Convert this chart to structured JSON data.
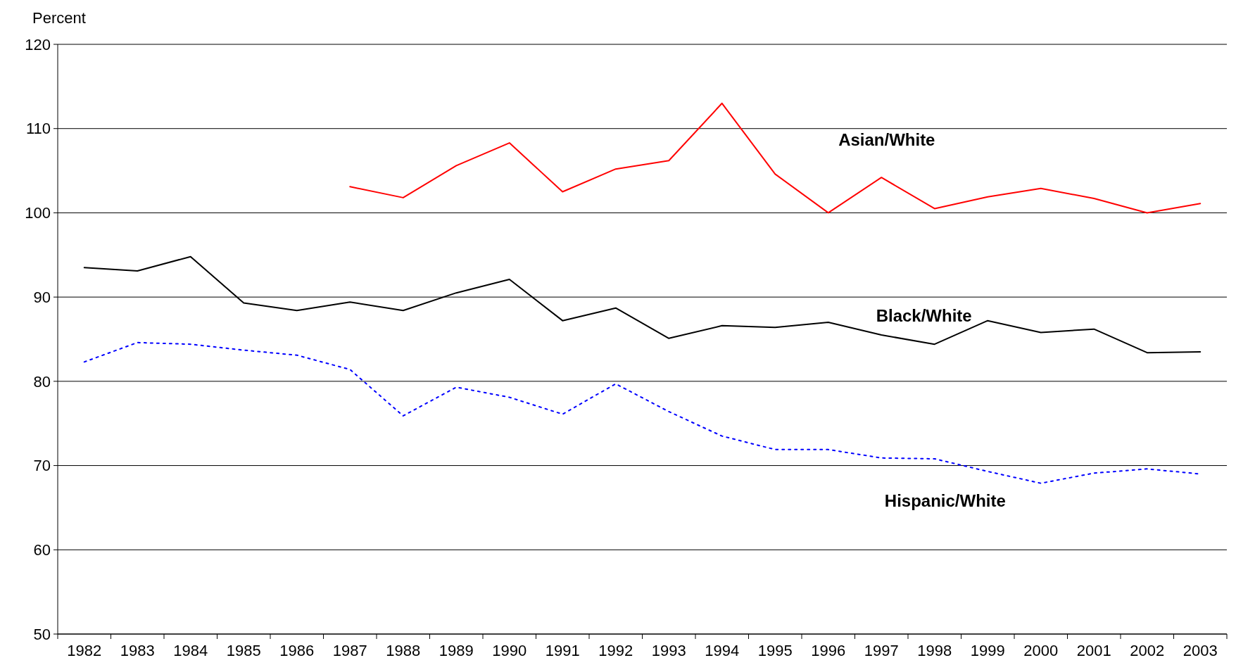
{
  "chart_data": {
    "type": "line",
    "ylabel": "Percent",
    "categories": [
      "1982",
      "1983",
      "1984",
      "1985",
      "1986",
      "1987",
      "1988",
      "1989",
      "1990",
      "1991",
      "1992",
      "1993",
      "1994",
      "1995",
      "1996",
      "1997",
      "1998",
      "1999",
      "2000",
      "2001",
      "2002",
      "2003"
    ],
    "series": [
      {
        "name": "Asian/White",
        "color": "#ff0000",
        "line_style": "solid",
        "values": [
          null,
          null,
          null,
          null,
          null,
          103.1,
          101.8,
          105.6,
          108.3,
          102.5,
          105.2,
          106.2,
          113.0,
          104.6,
          100.0,
          104.2,
          100.5,
          101.9,
          102.9,
          101.7,
          100.0,
          101.1
        ]
      },
      {
        "name": "Black/White",
        "color": "#000000",
        "line_style": "solid",
        "values": [
          93.5,
          93.1,
          94.8,
          89.3,
          88.4,
          89.4,
          88.4,
          90.5,
          92.1,
          87.2,
          88.7,
          85.1,
          86.6,
          86.4,
          87.0,
          85.5,
          84.4,
          87.2,
          85.8,
          86.2,
          83.4,
          83.5
        ]
      },
      {
        "name": "Hispanic/White",
        "color": "#0000ff",
        "line_style": "dotted",
        "values": [
          82.3,
          84.6,
          84.4,
          83.7,
          83.1,
          81.4,
          75.9,
          79.3,
          78.1,
          76.1,
          79.7,
          76.4,
          73.5,
          71.9,
          71.9,
          70.9,
          70.8,
          69.3,
          67.9,
          69.1,
          69.6,
          69.0
        ]
      }
    ],
    "ylim": [
      50,
      120
    ],
    "yticks": [
      50,
      60,
      70,
      80,
      90,
      100,
      110,
      120
    ],
    "grid": "y",
    "marker": "none"
  }
}
